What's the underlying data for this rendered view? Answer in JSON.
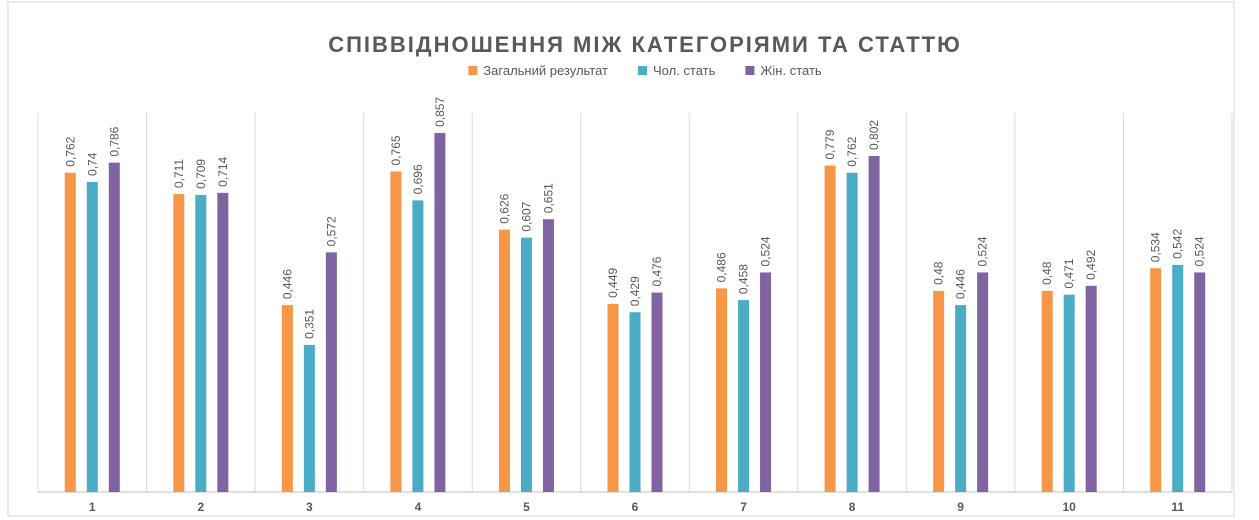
{
  "chart_data": {
    "type": "bar",
    "title": "СПІВВІДНОШЕННЯ МІЖ КАТЕГОРІЯМИ ТА СТАТТЮ",
    "categories": [
      "1",
      "2",
      "3",
      "4",
      "5",
      "6",
      "7",
      "8",
      "9",
      "10",
      "11"
    ],
    "series": [
      {
        "name": "Загальний результат",
        "color": "#f79646",
        "values": [
          0.762,
          0.711,
          0.446,
          0.765,
          0.626,
          0.449,
          0.486,
          0.779,
          0.48,
          0.48,
          0.534
        ],
        "value_labels": [
          "0,762",
          "0,711",
          "0,446",
          "0,765",
          "0,626",
          "0,449",
          "0,486",
          "0,779",
          "0,48",
          "0,48",
          "0,534"
        ]
      },
      {
        "name": "Чол. стать",
        "color": "#4bacc6",
        "values": [
          0.74,
          0.709,
          0.351,
          0.696,
          0.607,
          0.429,
          0.458,
          0.762,
          0.446,
          0.471,
          0.542
        ],
        "value_labels": [
          "0,74",
          "0,709",
          "0,351",
          "0,696",
          "0,607",
          "0,429",
          "0,458",
          "0,762",
          "0,446",
          "0,471",
          "0,542"
        ]
      },
      {
        "name": "Жін. стать",
        "color": "#8064a2",
        "values": [
          0.786,
          0.714,
          0.572,
          0.857,
          0.651,
          0.476,
          0.524,
          0.802,
          0.524,
          0.492,
          0.524
        ],
        "value_labels": [
          "0,786",
          "0,714",
          "0,572",
          "0,857",
          "0,651",
          "0,476",
          "0,524",
          "0,802",
          "0,524",
          "0,492",
          "0,524"
        ]
      }
    ],
    "ylim": [
      0,
      1
    ],
    "legend": "top"
  }
}
